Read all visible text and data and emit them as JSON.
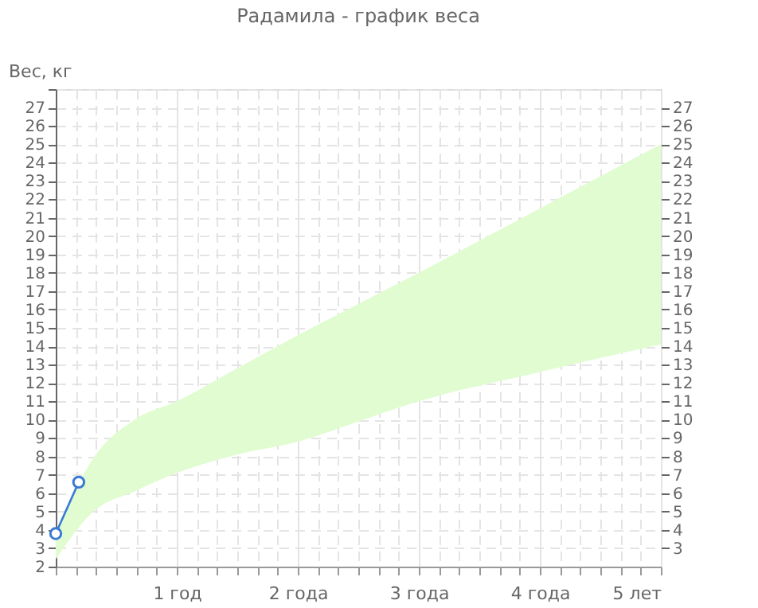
{
  "chart_data": {
    "type": "line",
    "title": "Радамила - график веса",
    "ylabel": "Вес, кг",
    "xlim": [
      0,
      5
    ],
    "xticks": [
      {
        "value": 0,
        "label": null
      },
      {
        "value": 0.1667,
        "label": null
      },
      {
        "value": 0.3333,
        "label": null
      },
      {
        "value": 0.5,
        "label": null
      },
      {
        "value": 0.6667,
        "label": null
      },
      {
        "value": 0.8333,
        "label": null
      },
      {
        "value": 1,
        "label": "1 год"
      },
      {
        "value": 1.1667,
        "label": null
      },
      {
        "value": 1.3333,
        "label": null
      },
      {
        "value": 1.5,
        "label": null
      },
      {
        "value": 1.6667,
        "label": null
      },
      {
        "value": 1.8333,
        "label": null
      },
      {
        "value": 2,
        "label": "2 года"
      },
      {
        "value": 2.1667,
        "label": null
      },
      {
        "value": 2.3333,
        "label": null
      },
      {
        "value": 2.5,
        "label": null
      },
      {
        "value": 2.6667,
        "label": null
      },
      {
        "value": 2.8333,
        "label": null
      },
      {
        "value": 3,
        "label": "3 года"
      },
      {
        "value": 3.1667,
        "label": null
      },
      {
        "value": 3.3333,
        "label": null
      },
      {
        "value": 3.5,
        "label": null
      },
      {
        "value": 3.6667,
        "label": null
      },
      {
        "value": 3.8333,
        "label": null
      },
      {
        "value": 4,
        "label": "4 года"
      },
      {
        "value": 4.1667,
        "label": null
      },
      {
        "value": 4.3333,
        "label": null
      },
      {
        "value": 4.5,
        "label": null
      },
      {
        "value": 4.6667,
        "label": null
      },
      {
        "value": 4.8333,
        "label": null
      },
      {
        "value": 5,
        "label": "5 лет"
      }
    ],
    "ylim": [
      2,
      28
    ],
    "yticks": [
      2,
      3,
      4,
      5,
      6,
      7,
      8,
      9,
      10,
      11,
      12,
      13,
      14,
      15,
      16,
      17,
      18,
      19,
      20,
      21,
      22,
      23,
      24,
      25,
      26,
      27,
      {
        "value": 28,
        "label": null
      }
    ],
    "y2lim": [
      2,
      28
    ],
    "y2ticks": [
      3,
      4,
      5,
      6,
      7,
      8,
      9,
      10,
      11,
      12,
      13,
      14,
      15,
      16,
      17,
      18,
      19,
      20,
      21,
      22,
      23,
      24,
      25,
      26,
      27
    ],
    "grid": true,
    "series": [
      {
        "type": "area",
        "color": "#e0fcd0",
        "x": [
          0,
          0.31,
          0.65,
          1,
          1.5,
          2,
          2.5,
          3,
          4,
          5
        ],
        "values": [
          null,
          null,
          null,
          null,
          null,
          null,
          null,
          null,
          null,
          null
        ],
        "upper": [
          3.8,
          7.9,
          10.0,
          11.0,
          12.8,
          14.6,
          16.3,
          18.0,
          21.5,
          25.0
        ],
        "lower": [
          2.4,
          5.0,
          6.1,
          7.1,
          8.1,
          8.8,
          9.9,
          11.0,
          12.6,
          14.1
        ]
      },
      {
        "color": "#3a7bd5",
        "marker": "circle",
        "x": [
          0,
          0.19
        ],
        "values": [
          3.8,
          6.6
        ]
      }
    ]
  }
}
